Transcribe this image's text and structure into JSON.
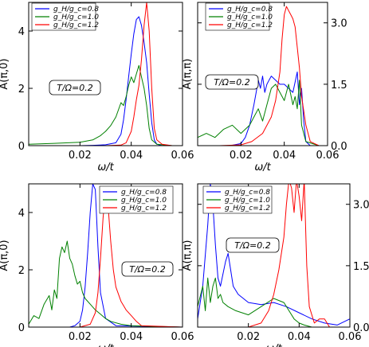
{
  "chart_data": [
    {
      "type": "line",
      "panel": "top-left",
      "xlabel": "ω/t",
      "ylabel": "A(π,0)",
      "xlim": [
        0.0,
        0.06
      ],
      "ylim": [
        0,
        5
      ],
      "xticks": [
        "0.02",
        "0.04",
        "0.06"
      ],
      "yticks": [
        "0",
        "2",
        "4"
      ],
      "y_axis_side": "left",
      "annotation": "T/Ω=0.2",
      "legend_position": "top-left",
      "series": [
        {
          "name": "g_H/g_c=0.8",
          "color": "#0000ff",
          "x": [
            0.0,
            0.01,
            0.02,
            0.025,
            0.03,
            0.034,
            0.036,
            0.037,
            0.038,
            0.039,
            0.04,
            0.041,
            0.042,
            0.043,
            0.044,
            0.045,
            0.046,
            0.047,
            0.048,
            0.049,
            0.05,
            0.052,
            0.056,
            0.06
          ],
          "y": [
            0.0,
            0.0,
            0.0,
            0.01,
            0.03,
            0.1,
            0.4,
            0.9,
            1.6,
            2.4,
            3.2,
            3.9,
            4.4,
            4.5,
            4.2,
            3.6,
            2.9,
            1.8,
            0.8,
            0.2,
            0.05,
            0.0,
            0.0,
            0.0
          ]
        },
        {
          "name": "g_H/g_c=1.0",
          "color": "#008000",
          "x": [
            0.0,
            0.01,
            0.02,
            0.025,
            0.028,
            0.03,
            0.032,
            0.034,
            0.036,
            0.037,
            0.038,
            0.039,
            0.04,
            0.041,
            0.042,
            0.043,
            0.044,
            0.045,
            0.046,
            0.047,
            0.048,
            0.05,
            0.056,
            0.06
          ],
          "y": [
            0.05,
            0.08,
            0.12,
            0.2,
            0.35,
            0.5,
            0.7,
            1.0,
            1.5,
            1.4,
            1.7,
            2.1,
            2.4,
            2.2,
            2.5,
            2.8,
            2.4,
            2.0,
            1.4,
            0.6,
            0.2,
            0.05,
            0.0,
            0.0
          ]
        },
        {
          "name": "g_H/g_c=1.2",
          "color": "#ff0000",
          "x": [
            0.0,
            0.02,
            0.03,
            0.036,
            0.038,
            0.04,
            0.041,
            0.042,
            0.043,
            0.044,
            0.045,
            0.046,
            0.047,
            0.048,
            0.049,
            0.05,
            0.052,
            0.056,
            0.06
          ],
          "y": [
            0.0,
            0.0,
            0.0,
            0.02,
            0.1,
            0.5,
            1.0,
            1.6,
            2.1,
            3.0,
            4.2,
            5.0,
            4.0,
            2.0,
            0.6,
            0.2,
            0.05,
            0.0,
            0.0
          ]
        }
      ]
    },
    {
      "type": "line",
      "panel": "top-right",
      "xlabel": "ω/t",
      "ylabel": "A(π,π)",
      "xlim": [
        0.0,
        0.06
      ],
      "ylim": [
        0,
        3.5
      ],
      "xticks": [
        "0.02",
        "0.04",
        "0.06"
      ],
      "yticks": [
        "0.0",
        "1.5",
        "3.0"
      ],
      "y_axis_side": "right",
      "annotation": "T/Ω=0.2",
      "legend_position": "top-left",
      "series": [
        {
          "name": "g_H/g_c=0.8",
          "color": "#0000ff",
          "x": [
            0.0,
            0.01,
            0.015,
            0.02,
            0.022,
            0.024,
            0.026,
            0.027,
            0.028,
            0.029,
            0.03,
            0.031,
            0.032,
            0.033,
            0.034,
            0.036,
            0.038,
            0.04,
            0.042,
            0.044,
            0.046,
            0.047,
            0.048,
            0.049,
            0.05,
            0.052,
            0.056,
            0.06
          ],
          "y": [
            0.0,
            0.0,
            0.0,
            0.05,
            0.2,
            0.5,
            1.0,
            1.3,
            1.6,
            1.4,
            1.7,
            1.3,
            1.5,
            1.6,
            1.7,
            1.6,
            1.5,
            1.5,
            1.4,
            1.3,
            1.8,
            1.0,
            1.4,
            0.6,
            0.1,
            0.0,
            0.0,
            0.0
          ]
        },
        {
          "name": "g_H/g_c=1.0",
          "color": "#008000",
          "x": [
            0.0,
            0.004,
            0.008,
            0.012,
            0.016,
            0.02,
            0.024,
            0.026,
            0.028,
            0.03,
            0.032,
            0.034,
            0.036,
            0.038,
            0.04,
            0.042,
            0.044,
            0.045,
            0.046,
            0.047,
            0.048,
            0.05,
            0.056,
            0.06
          ],
          "y": [
            0.2,
            0.3,
            0.2,
            0.4,
            0.5,
            0.3,
            0.5,
            0.7,
            0.9,
            0.6,
            1.0,
            1.4,
            1.5,
            1.3,
            1.1,
            1.5,
            1.0,
            1.2,
            0.9,
            1.6,
            0.5,
            0.1,
            0.0,
            0.0
          ]
        },
        {
          "name": "g_H/g_c=1.2",
          "color": "#ff0000",
          "x": [
            0.0,
            0.01,
            0.02,
            0.025,
            0.03,
            0.034,
            0.036,
            0.038,
            0.039,
            0.04,
            0.041,
            0.042,
            0.043,
            0.044,
            0.045,
            0.046,
            0.047,
            0.048,
            0.05,
            0.052,
            0.056,
            0.06
          ],
          "y": [
            0.0,
            0.0,
            0.02,
            0.1,
            0.3,
            0.7,
            1.1,
            1.8,
            2.6,
            3.2,
            3.4,
            3.3,
            3.2,
            3.1,
            2.9,
            2.4,
            1.9,
            1.2,
            0.5,
            0.1,
            0.0,
            0.0
          ]
        }
      ]
    },
    {
      "type": "line",
      "panel": "bottom-left",
      "xlabel": "ω/t",
      "ylabel": "A(π,0)",
      "xlim": [
        0.0,
        0.06
      ],
      "ylim": [
        0,
        5
      ],
      "xticks": [
        "0.02",
        "0.04",
        "0.06"
      ],
      "yticks": [
        "0",
        "2",
        "4"
      ],
      "y_axis_side": "left",
      "annotation": "T/Ω=0.2",
      "legend_position": "top-right",
      "series": [
        {
          "name": "g_H/g_c=0.8",
          "color": "#0000ff",
          "x": [
            0.0,
            0.01,
            0.016,
            0.018,
            0.02,
            0.021,
            0.022,
            0.023,
            0.024,
            0.025,
            0.026,
            0.027,
            0.028,
            0.03,
            0.034,
            0.06
          ],
          "y": [
            0.0,
            0.0,
            0.0,
            0.05,
            0.2,
            0.6,
            1.4,
            2.6,
            4.0,
            5.0,
            4.8,
            2.8,
            1.2,
            0.3,
            0.05,
            0.0
          ]
        },
        {
          "name": "g_H/g_c=1.0",
          "color": "#008000",
          "x": [
            0.0,
            0.002,
            0.004,
            0.006,
            0.008,
            0.009,
            0.01,
            0.011,
            0.012,
            0.013,
            0.014,
            0.015,
            0.016,
            0.017,
            0.018,
            0.019,
            0.02,
            0.021,
            0.022,
            0.024,
            0.026,
            0.028,
            0.03,
            0.032,
            0.036,
            0.04,
            0.06
          ],
          "y": [
            0.1,
            0.4,
            0.3,
            0.8,
            1.1,
            0.6,
            1.3,
            1.0,
            2.4,
            2.8,
            2.6,
            3.0,
            2.4,
            2.2,
            1.8,
            1.5,
            1.6,
            1.2,
            1.0,
            0.8,
            0.6,
            0.45,
            0.3,
            0.2,
            0.1,
            0.05,
            0.0
          ]
        },
        {
          "name": "g_H/g_c=1.2",
          "color": "#ff0000",
          "x": [
            0.0,
            0.02,
            0.024,
            0.026,
            0.027,
            0.028,
            0.029,
            0.03,
            0.031,
            0.032,
            0.033,
            0.034,
            0.036,
            0.038,
            0.04,
            0.042,
            0.044,
            0.06
          ],
          "y": [
            0.0,
            0.0,
            0.1,
            0.5,
            1.2,
            2.4,
            3.8,
            4.8,
            4.2,
            3.0,
            2.0,
            1.4,
            0.9,
            0.6,
            0.4,
            0.2,
            0.05,
            0.0
          ]
        }
      ]
    },
    {
      "type": "line",
      "panel": "bottom-right",
      "xlabel": "ω/t",
      "ylabel": "A(π,π)",
      "xlim": [
        0.0,
        0.06
      ],
      "ylim": [
        0,
        3.5
      ],
      "xticks": [
        "0.02",
        "0.04",
        "0.06"
      ],
      "yticks": [
        "0.0",
        "1.5",
        "3.0"
      ],
      "y_axis_side": "right",
      "annotation": "T/Ω=0.2",
      "legend_position": "top-left",
      "series": [
        {
          "name": "g_H/g_c=0.8",
          "color": "#0000ff",
          "x": [
            0.0,
            0.002,
            0.004,
            0.005,
            0.006,
            0.007,
            0.008,
            0.009,
            0.01,
            0.011,
            0.012,
            0.013,
            0.014,
            0.016,
            0.02,
            0.025,
            0.03,
            0.035,
            0.04,
            0.045,
            0.05,
            0.055,
            0.06
          ],
          "y": [
            0.2,
            1.0,
            2.5,
            3.5,
            3.0,
            2.0,
            1.2,
            1.0,
            1.3,
            1.6,
            1.8,
            1.4,
            1.0,
            0.8,
            0.6,
            0.55,
            0.6,
            0.5,
            0.35,
            0.2,
            0.1,
            0.05,
            0.2
          ]
        },
        {
          "name": "g_H/g_c=1.0",
          "color": "#008000",
          "x": [
            0.0,
            0.002,
            0.003,
            0.004,
            0.005,
            0.006,
            0.007,
            0.008,
            0.009,
            0.01,
            0.012,
            0.015,
            0.02,
            0.025,
            0.03,
            0.034,
            0.036,
            0.038,
            0.04,
            0.042,
            0.045,
            0.05,
            0.06
          ],
          "y": [
            0.5,
            1.0,
            0.4,
            1.2,
            0.6,
            1.0,
            1.2,
            0.7,
            0.8,
            0.6,
            0.5,
            0.4,
            0.3,
            0.5,
            0.7,
            0.6,
            0.4,
            0.2,
            0.1,
            0.05,
            0.0,
            0.0,
            0.0
          ]
        },
        {
          "name": "g_H/g_c=1.2",
          "color": "#ff0000",
          "x": [
            0.0,
            0.02,
            0.025,
            0.028,
            0.03,
            0.032,
            0.034,
            0.035,
            0.036,
            0.037,
            0.038,
            0.039,
            0.04,
            0.041,
            0.042,
            0.043,
            0.044,
            0.046,
            0.048,
            0.05,
            0.052,
            0.056,
            0.06
          ],
          "y": [
            0.0,
            0.0,
            0.1,
            0.4,
            0.8,
            1.4,
            2.2,
            3.0,
            3.6,
            3.4,
            2.8,
            3.6,
            3.2,
            2.6,
            3.6,
            1.5,
            0.5,
            0.1,
            0.2,
            0.2,
            0.0,
            0.0,
            0.0
          ]
        }
      ]
    }
  ]
}
